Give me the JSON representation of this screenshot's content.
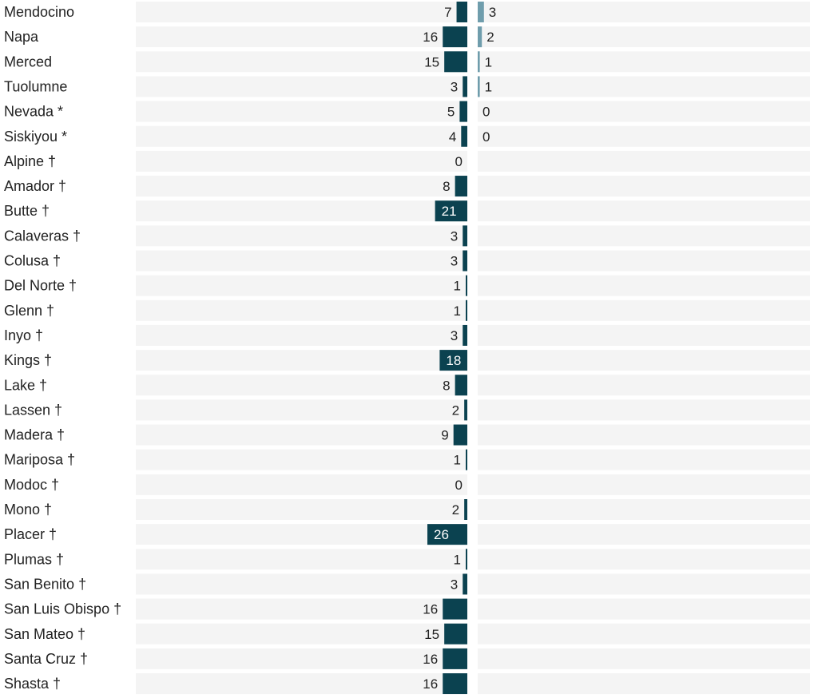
{
  "colors": {
    "row_background": "#f4f4f4",
    "left_bar": "#0b4250",
    "right_bar": "#6f9dac",
    "text": "#222222",
    "label_inside": "#ffffff"
  },
  "chart_data": {
    "type": "bar",
    "layout": "diverging-horizontal",
    "categories": [
      "Mendocino",
      "Napa",
      "Merced",
      "Tuolumne",
      "Nevada *",
      "Siskiyou *",
      "Alpine †",
      "Amador †",
      "Butte †",
      "Calaveras †",
      "Colusa †",
      "Del Norte †",
      "Glenn †",
      "Inyo †",
      "Kings †",
      "Lake †",
      "Lassen †",
      "Madera †",
      "Mariposa †",
      "Modoc †",
      "Mono †",
      "Placer †",
      "Plumas †",
      "San Benito †",
      "San Luis Obispo †",
      "San Mateo †",
      "Santa Cruz †",
      "Shasta †"
    ],
    "series": [
      {
        "side": "left",
        "values": [
          7,
          16,
          15,
          3,
          5,
          4,
          0,
          8,
          21,
          3,
          3,
          1,
          1,
          3,
          18,
          8,
          2,
          9,
          1,
          0,
          2,
          26,
          1,
          3,
          16,
          15,
          16,
          16
        ]
      },
      {
        "side": "right",
        "values": [
          3,
          2,
          1,
          1,
          0,
          0,
          null,
          null,
          null,
          null,
          null,
          null,
          null,
          null,
          null,
          null,
          null,
          null,
          null,
          null,
          null,
          null,
          null,
          null,
          null,
          null,
          null,
          null
        ]
      }
    ],
    "title": "",
    "xlabel": "",
    "ylabel": ""
  }
}
